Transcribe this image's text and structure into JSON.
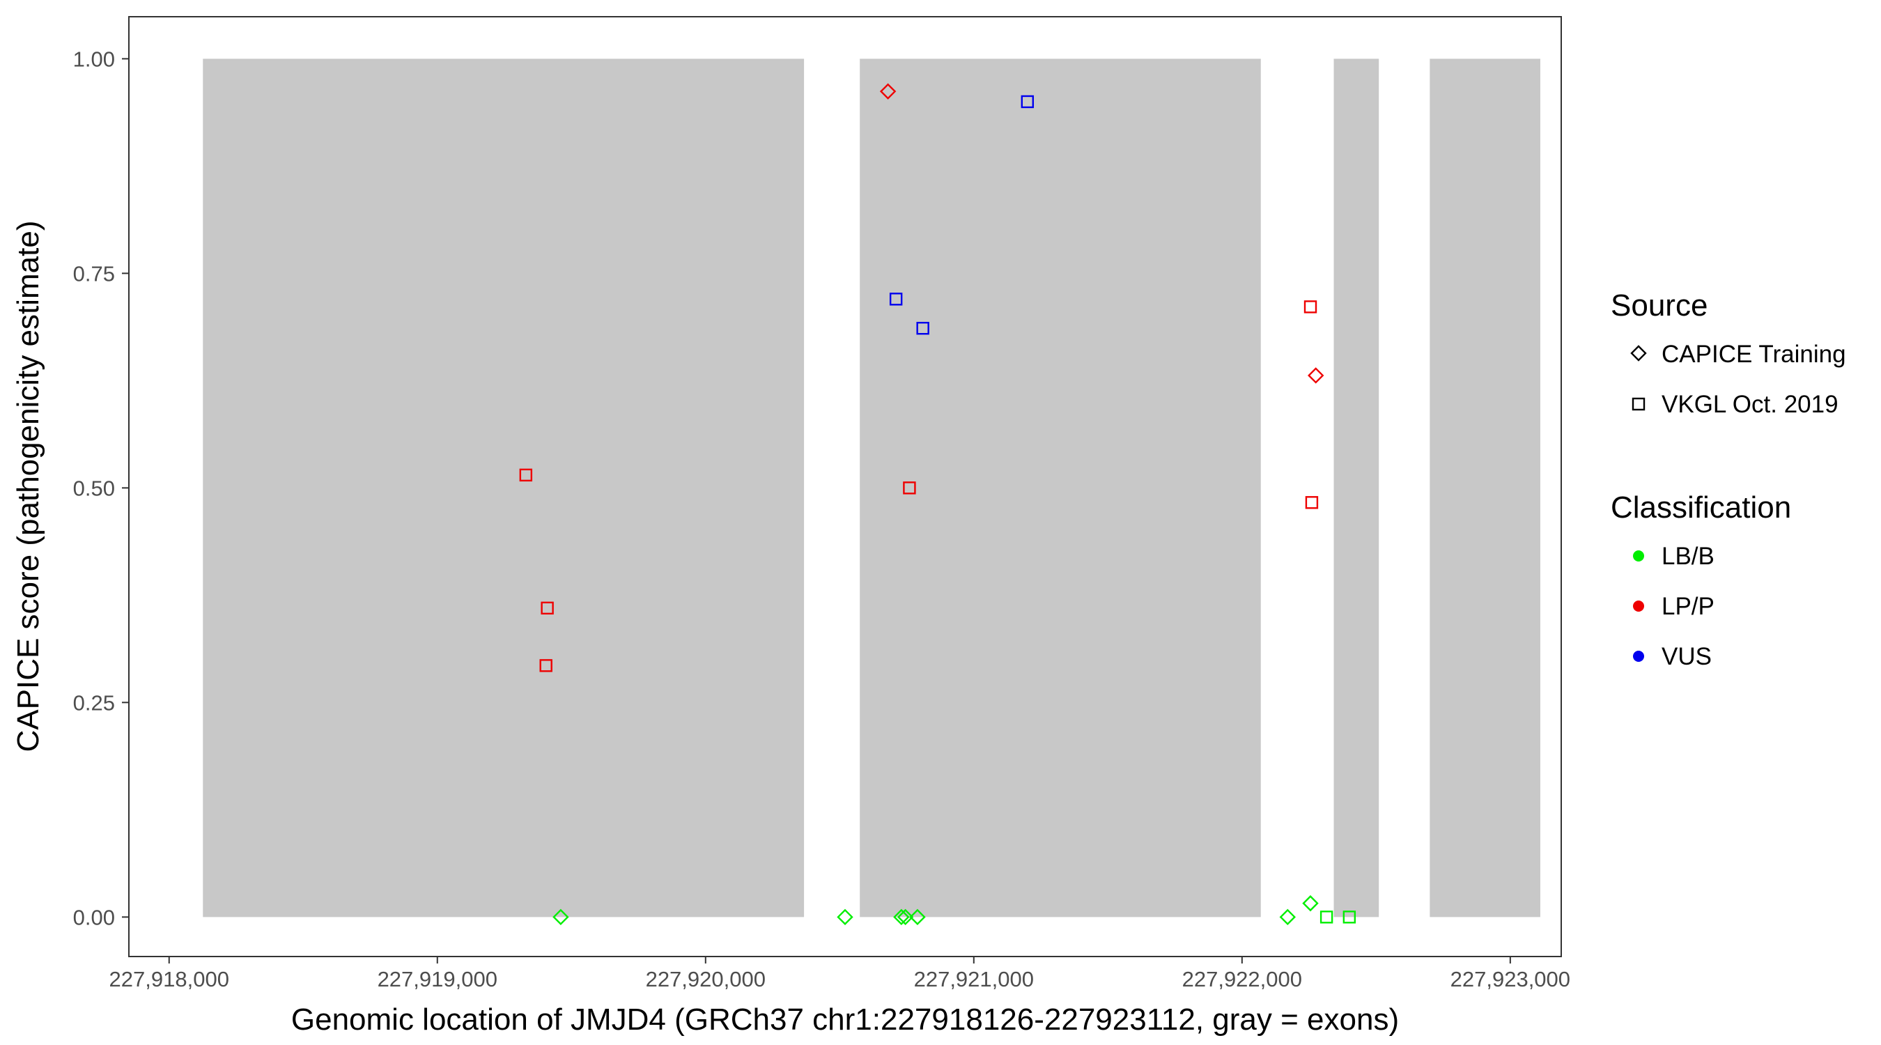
{
  "chart_data": {
    "type": "scatter",
    "xlabel": "Genomic location of JMJD4 (GRCh37 chr1:227918126-227923112, gray = exons)",
    "ylabel": "CAPICE score (pathogenicity estimate)",
    "xlim": [
      227917850,
      227923190
    ],
    "ylim": [
      -0.046,
      1.049
    ],
    "x_ticks": [
      227918000,
      227919000,
      227920000,
      227921000,
      227922000,
      227923000
    ],
    "x_tick_labels": [
      "227,918,000",
      "227,919,000",
      "227,920,000",
      "227,921,000",
      "227,922,000",
      "227,923,000"
    ],
    "y_ticks": [
      0,
      0.25,
      0.5,
      0.75,
      1.0
    ],
    "y_tick_labels": [
      "0.00",
      "0.25",
      "0.50",
      "0.75",
      "1.00"
    ],
    "grid": false,
    "exons": [
      {
        "start": 227918126,
        "end": 227920367
      },
      {
        "start": 227920575,
        "end": 227922070
      },
      {
        "start": 227922342,
        "end": 227922510
      },
      {
        "start": 227922700,
        "end": 227923112
      }
    ],
    "exon_color": "#c8c8c8",
    "legend_placement": "right",
    "legends": {
      "source": {
        "title": "Source",
        "entries": [
          {
            "label": "CAPICE Training",
            "shape": "diamond"
          },
          {
            "label": "VKGL Oct. 2019",
            "shape": "square"
          }
        ]
      },
      "classification": {
        "title": "Classification",
        "entries": [
          {
            "label": "LB/B",
            "color": "#00ee00"
          },
          {
            "label": "LP/P",
            "color": "#ee0000"
          },
          {
            "label": "VUS",
            "color": "#0000ee"
          }
        ]
      }
    },
    "points": [
      {
        "x": 227919330,
        "y": 0.515,
        "source": "VKGL Oct. 2019",
        "classification": "LP/P"
      },
      {
        "x": 227919410,
        "y": 0.36,
        "source": "VKGL Oct. 2019",
        "classification": "LP/P"
      },
      {
        "x": 227919405,
        "y": 0.293,
        "source": "VKGL Oct. 2019",
        "classification": "LP/P"
      },
      {
        "x": 227919460,
        "y": 0.0,
        "source": "CAPICE Training",
        "classification": "LB/B"
      },
      {
        "x": 227920520,
        "y": 0.0,
        "source": "CAPICE Training",
        "classification": "LB/B"
      },
      {
        "x": 227920680,
        "y": 0.962,
        "source": "CAPICE Training",
        "classification": "LP/P"
      },
      {
        "x": 227920710,
        "y": 0.72,
        "source": "VKGL Oct. 2019",
        "classification": "VUS"
      },
      {
        "x": 227920760,
        "y": 0.5,
        "source": "VKGL Oct. 2019",
        "classification": "LP/P"
      },
      {
        "x": 227920810,
        "y": 0.686,
        "source": "VKGL Oct. 2019",
        "classification": "VUS"
      },
      {
        "x": 227920730,
        "y": 0.0,
        "source": "CAPICE Training",
        "classification": "LB/B"
      },
      {
        "x": 227920745,
        "y": 0.0,
        "source": "CAPICE Training",
        "classification": "LB/B"
      },
      {
        "x": 227920790,
        "y": 0.0,
        "source": "CAPICE Training",
        "classification": "LB/B"
      },
      {
        "x": 227921200,
        "y": 0.95,
        "source": "VKGL Oct. 2019",
        "classification": "VUS"
      },
      {
        "x": 227922170,
        "y": 0.0,
        "source": "CAPICE Training",
        "classification": "LB/B"
      },
      {
        "x": 227922255,
        "y": 0.016,
        "source": "CAPICE Training",
        "classification": "LB/B"
      },
      {
        "x": 227922255,
        "y": 0.711,
        "source": "VKGL Oct. 2019",
        "classification": "LP/P"
      },
      {
        "x": 227922275,
        "y": 0.631,
        "source": "CAPICE Training",
        "classification": "LP/P"
      },
      {
        "x": 227922260,
        "y": 0.483,
        "source": "VKGL Oct. 2019",
        "classification": "LP/P"
      },
      {
        "x": 227922315,
        "y": 0.0,
        "source": "VKGL Oct. 2019",
        "classification": "LB/B"
      },
      {
        "x": 227922400,
        "y": 0.0,
        "source": "VKGL Oct. 2019",
        "classification": "LB/B"
      }
    ]
  }
}
